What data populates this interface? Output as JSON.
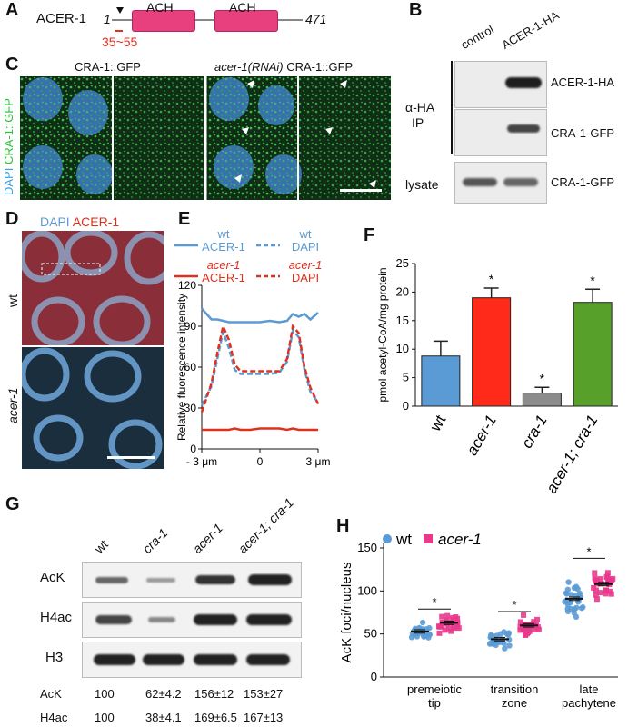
{
  "panels": {
    "A": "A",
    "B": "B",
    "C": "C",
    "D": "D",
    "E": "E",
    "F": "F",
    "G": "G",
    "H": "H"
  },
  "panel_a": {
    "protein": "ACER-1",
    "start": "1",
    "end": "471",
    "domain1": "ACH",
    "domain2": "ACH",
    "region": "35~55"
  },
  "panel_b": {
    "lane1": "control",
    "lane2": "ACER-1-HA",
    "ip_label_line1": "α-HA",
    "ip_label_line2": "IP",
    "lysate": "lysate",
    "band1": "ACER-1-HA",
    "band2": "CRA-1-GFP",
    "band3": "CRA-1-GFP"
  },
  "panel_c": {
    "title_left": "CRA-1::GFP",
    "title_right_italic": "acer-1(RNAi)",
    "title_right": " CRA-1::GFP",
    "side_dapi": "DAPI",
    "side_gfp": "CRA-1::GFP"
  },
  "panel_d": {
    "dapi": "DAPI",
    "acer": "ACER-1",
    "wt": "wt",
    "mut": "acer-1"
  },
  "panel_e": {
    "legend": [
      {
        "top": "wt",
        "bottom": "ACER-1",
        "color": "#5b9bd5",
        "dashed": false
      },
      {
        "top": "wt",
        "bottom": "DAPI",
        "color": "#5b9bd5",
        "dashed": true
      },
      {
        "top": "acer-1",
        "bottom": "ACER-1",
        "color": "#e0301e",
        "dashed": false
      },
      {
        "top": "acer-1",
        "bottom": "DAPI",
        "color": "#e0301e",
        "dashed": true
      }
    ],
    "ylabel": "Relative fluorescence intensity",
    "yticks": [
      "0",
      "30",
      "60",
      "90",
      "120"
    ],
    "xticks": [
      "- 3 μm",
      "0",
      "3 μm"
    ]
  },
  "chart_data": [
    {
      "type": "line",
      "ylabel": "Relative fluorescence intensity",
      "ylim": [
        0,
        120
      ],
      "x": [
        -3,
        -2.5,
        -2.2,
        -1.9,
        -1.6,
        -1.3,
        -1,
        -0.5,
        0,
        0.5,
        1,
        1.4,
        1.7,
        2,
        2.3,
        2.6,
        3
      ],
      "series": [
        {
          "name": "wt ACER-1",
          "values": [
            103,
            95,
            95,
            94,
            93,
            93,
            93,
            93,
            93,
            94,
            93,
            94,
            99,
            97,
            99,
            95,
            100
          ]
        },
        {
          "name": "wt DAPI",
          "values": [
            32,
            46,
            66,
            86,
            74,
            58,
            55,
            55,
            55,
            55,
            56,
            64,
            87,
            82,
            58,
            42,
            34
          ]
        },
        {
          "name": "acer-1 ACER-1",
          "values": [
            14,
            14,
            14,
            14,
            14,
            15,
            14,
            14,
            15,
            15,
            15,
            14,
            15,
            14,
            14,
            14,
            14
          ]
        },
        {
          "name": "acer-1 DAPI",
          "values": [
            27,
            48,
            70,
            90,
            80,
            62,
            57,
            57,
            57,
            57,
            57,
            66,
            90,
            85,
            60,
            45,
            33
          ]
        }
      ]
    },
    {
      "type": "bar",
      "ylabel": "pmol acetyl-CoA/mg protein",
      "ylim": [
        0,
        25
      ],
      "yticks": [
        "0",
        "5",
        "10",
        "15",
        "20",
        "25"
      ],
      "categories": [
        "wt",
        "acer-1",
        "cra-1",
        "acer-1; cra-1"
      ],
      "values": [
        8.8,
        19,
        2.3,
        18.2
      ],
      "errors": [
        2.6,
        1.7,
        1.0,
        2.3
      ],
      "sig": [
        "",
        "*",
        "*",
        "*"
      ],
      "colors": [
        "#5b9bd5",
        "#ff2a1a",
        "#8c8c8c",
        "#57a12a"
      ]
    },
    {
      "type": "scatter",
      "ylabel": "AcK foci/nucleus",
      "ylim": [
        0,
        150
      ],
      "yticks": [
        "0",
        "50",
        "100",
        "150"
      ],
      "categories": [
        "premeiotic tip",
        "transition zone",
        "late pachytene"
      ],
      "series": [
        {
          "name": "wt",
          "means": [
            53,
            44,
            91
          ],
          "color": "#5b9bd5"
        },
        {
          "name": "acer-1",
          "means": [
            63,
            60,
            108
          ],
          "color": "#e8398c"
        }
      ],
      "sig": [
        "*",
        "*",
        "*"
      ]
    }
  ],
  "panel_f": {
    "ylabel": "pmol acetyl-CoA/mg protein",
    "star": "*"
  },
  "panel_g": {
    "lanes": [
      "wt",
      "cra-1",
      "acer-1",
      "acer-1; cra-1"
    ],
    "rows": [
      "AcK",
      "H4ac",
      "H3"
    ],
    "quant": [
      {
        "label": "AcK",
        "values": [
          "100",
          "62±4.2",
          "156±12",
          "153±27"
        ]
      },
      {
        "label": "H4ac",
        "values": [
          "100",
          "38±4.1",
          "169±6.5",
          "167±13"
        ]
      }
    ]
  },
  "panel_h": {
    "legend_wt": "wt",
    "legend_mut": "acer-1",
    "ylabel": "AcK foci/nucleus",
    "xlabels": [
      [
        "premeiotic",
        "tip"
      ],
      [
        "transition",
        "zone"
      ],
      [
        "late",
        "pachytene"
      ]
    ],
    "star": "*"
  }
}
